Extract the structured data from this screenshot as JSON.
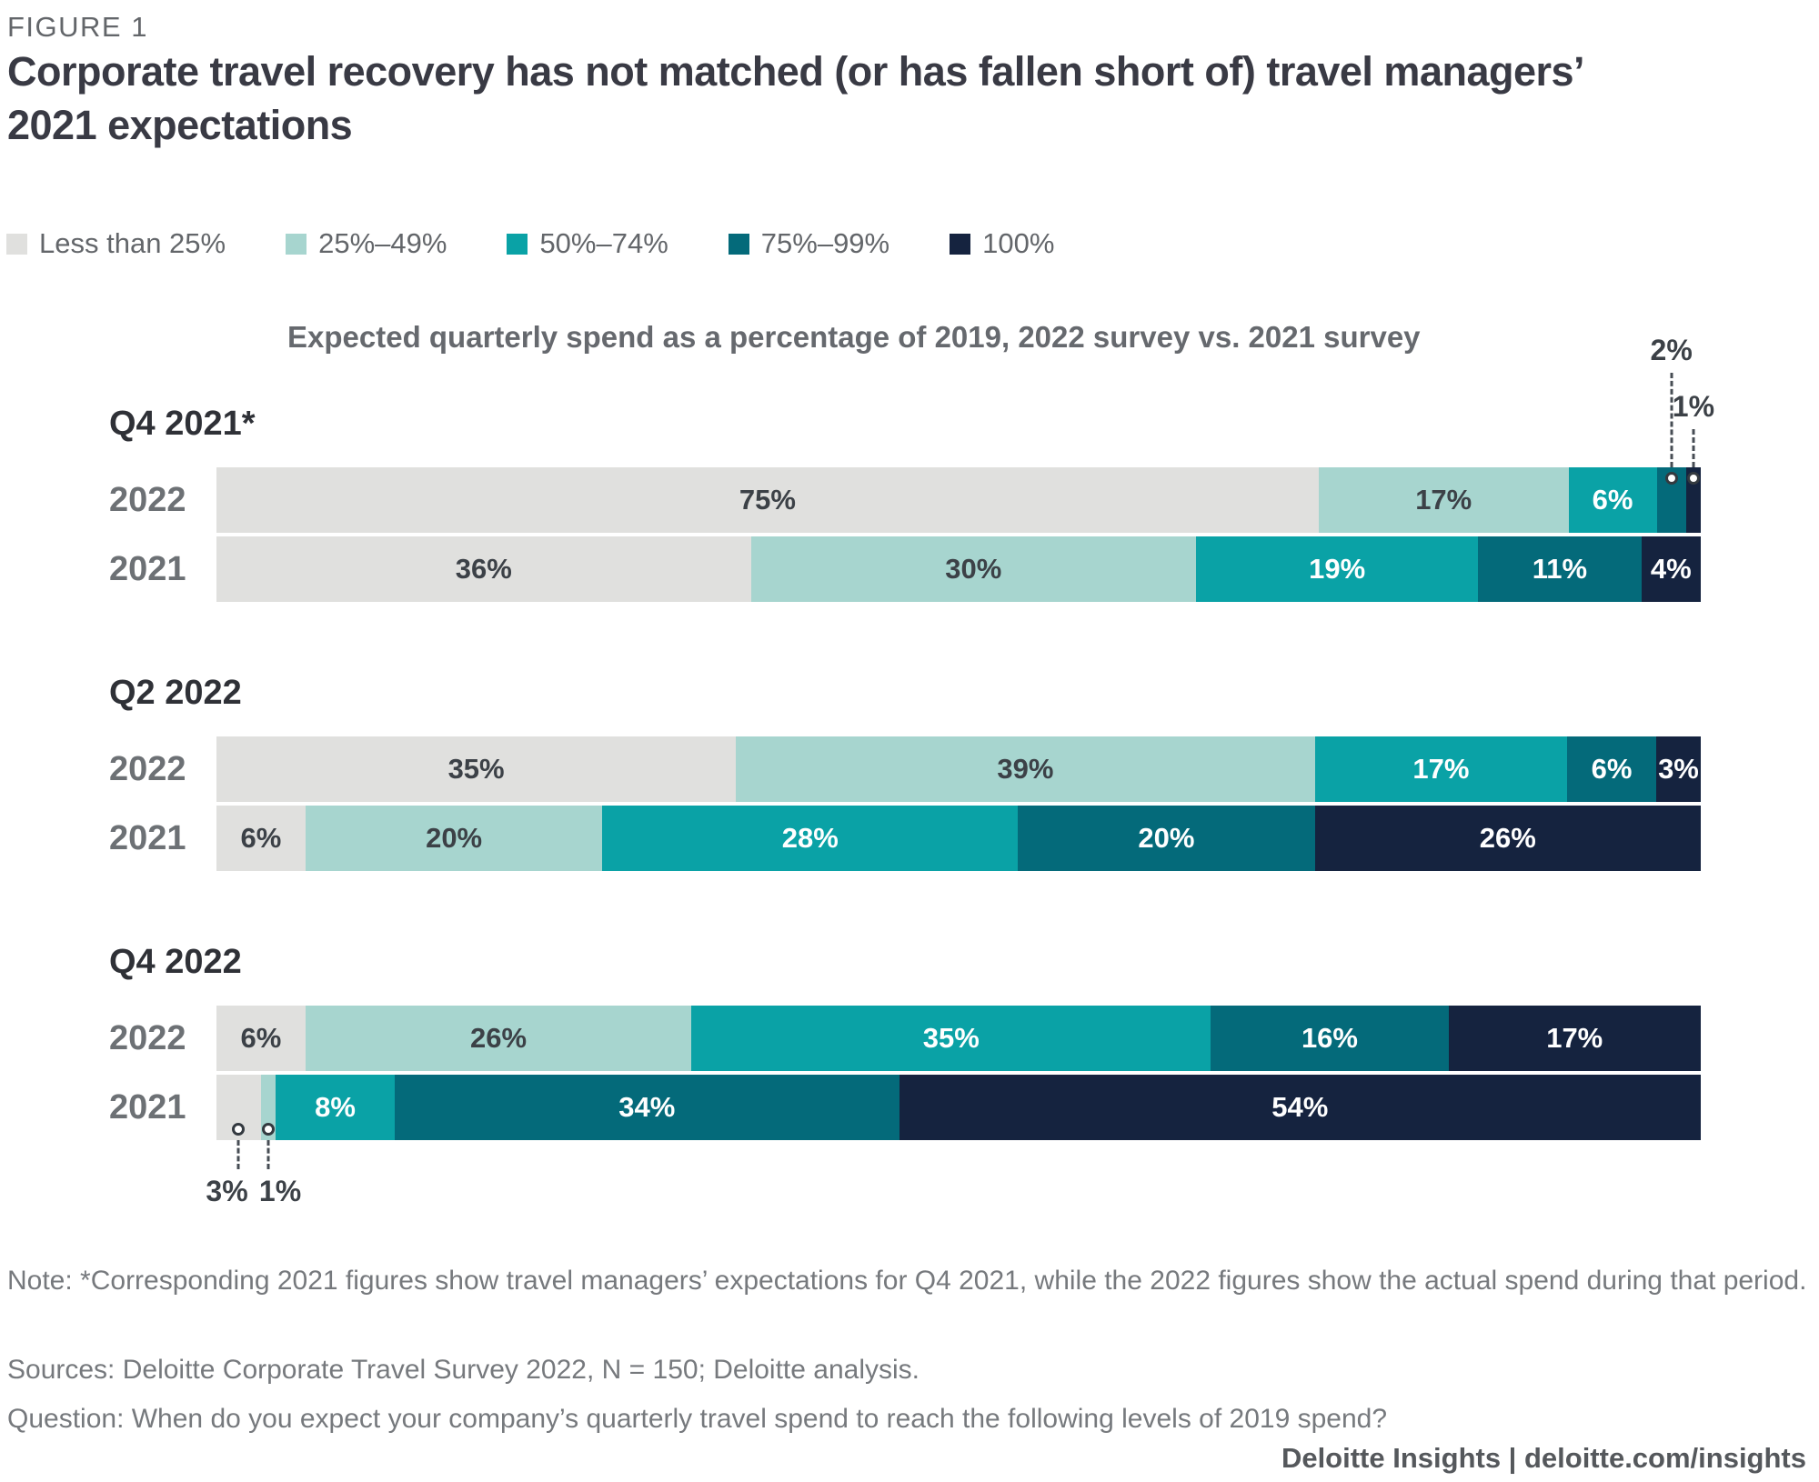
{
  "figure_label": "FIGURE 1",
  "title": "Corporate travel recovery has not matched (or has fallen short of) travel managers’ 2021 expectations",
  "legend": [
    {
      "label": "Less than 25%",
      "color": "#E0E0DE"
    },
    {
      "label": "25%–49%",
      "color": "#A7D5CF"
    },
    {
      "label": "50%–74%",
      "color": "#0AA2A6"
    },
    {
      "label": "75%–99%",
      "color": "#046A7A"
    },
    {
      "label": "100%",
      "color": "#15233F"
    }
  ],
  "chart_data": {
    "type": "bar",
    "orientation": "horizontal-stacked",
    "title": "Expected quarterly spend as a percentage of 2019, 2022 survey vs. 2021 survey",
    "value_suffix": "%",
    "categories": [
      "Less than 25%",
      "25%–49%",
      "50%–74%",
      "75%–99%",
      "100%"
    ],
    "groups": [
      {
        "label": "Q4 2021*",
        "rows": [
          {
            "label": "2022",
            "values": [
              75,
              17,
              6,
              2,
              1
            ],
            "callout_side": "top",
            "callouts": [
              {
                "segment": 3,
                "text": "2%"
              },
              {
                "segment": 4,
                "text": "1%"
              }
            ]
          },
          {
            "label": "2021",
            "values": [
              36,
              30,
              19,
              11,
              4
            ]
          }
        ]
      },
      {
        "label": "Q2 2022",
        "rows": [
          {
            "label": "2022",
            "values": [
              35,
              39,
              17,
              6,
              3
            ]
          },
          {
            "label": "2021",
            "values": [
              6,
              20,
              28,
              20,
              26
            ]
          }
        ]
      },
      {
        "label": "Q4 2022",
        "rows": [
          {
            "label": "2022",
            "values": [
              6,
              26,
              35,
              16,
              17
            ]
          },
          {
            "label": "2021",
            "values": [
              3,
              1,
              8,
              34,
              54
            ],
            "callout_side": "bottom",
            "callouts": [
              {
                "segment": 0,
                "text": "3%"
              },
              {
                "segment": 1,
                "text": "1%"
              }
            ]
          }
        ]
      }
    ]
  },
  "notes": {
    "note": "Note: *Corresponding 2021 figures show travel managers’ expectations for Q4 2021, while the 2022 figures show the actual spend during that period.",
    "sources": "Sources: Deloitte Corporate Travel Survey 2022, N = 150; Deloitte analysis.",
    "question": "Question: When do you expect your company’s quarterly travel spend to reach the following levels of 2019 spend?"
  },
  "footer_brand": "Deloitte Insights | deloitte.com/insights"
}
